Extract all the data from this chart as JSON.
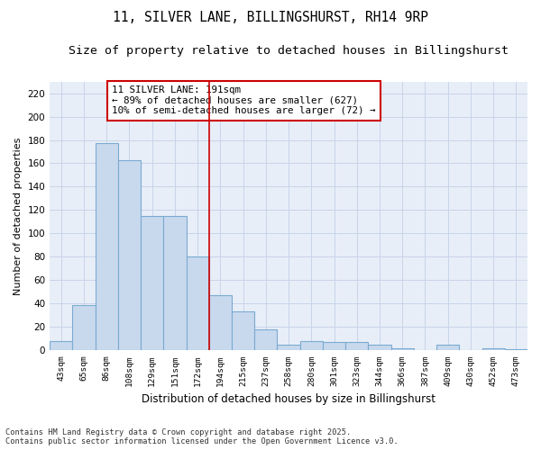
{
  "title_line1": "11, SILVER LANE, BILLINGSHURST, RH14 9RP",
  "title_line2": "Size of property relative to detached houses in Billingshurst",
  "xlabel": "Distribution of detached houses by size in Billingshurst",
  "ylabel": "Number of detached properties",
  "bins": [
    "43sqm",
    "65sqm",
    "86sqm",
    "108sqm",
    "129sqm",
    "151sqm",
    "172sqm",
    "194sqm",
    "215sqm",
    "237sqm",
    "258sqm",
    "280sqm",
    "301sqm",
    "323sqm",
    "344sqm",
    "366sqm",
    "387sqm",
    "409sqm",
    "430sqm",
    "452sqm",
    "473sqm"
  ],
  "bar_values": [
    8,
    39,
    177,
    163,
    115,
    115,
    80,
    47,
    33,
    18,
    5,
    8,
    7,
    7,
    5,
    2,
    0,
    5,
    0,
    2,
    1
  ],
  "bar_color": "#c8d9ee",
  "bar_edge_color": "#7aaad0",
  "vline_index": 7,
  "annotation_title": "11 SILVER LANE: 191sqm",
  "annotation_line2": "← 89% of detached houses are smaller (627)",
  "annotation_line3": "10% of semi-detached houses are larger (72) →",
  "annotation_box_color": "#ffffff",
  "annotation_box_edge": "#cc0000",
  "vline_color": "#cc0000",
  "ylim": [
    0,
    230
  ],
  "yticks": [
    0,
    20,
    40,
    60,
    80,
    100,
    120,
    140,
    160,
    180,
    200,
    220
  ],
  "grid_color": "#c8d4e8",
  "bg_color": "#e8eef8",
  "footer_line1": "Contains HM Land Registry data © Crown copyright and database right 2025.",
  "footer_line2": "Contains public sector information licensed under the Open Government Licence v3.0.",
  "title_fontsize": 10.5,
  "subtitle_fontsize": 9.5
}
